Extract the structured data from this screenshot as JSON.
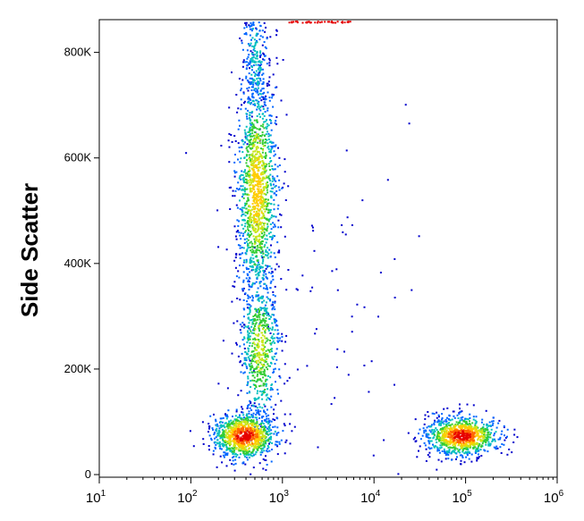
{
  "chart_data": {
    "type": "scatter",
    "subtype": "flow-cytometry-density-dot-plot",
    "title": "",
    "xlabel": "",
    "ylabel": "Side Scatter",
    "x_scale": "log",
    "xlim": [
      10,
      1000000
    ],
    "ylim": [
      -5000,
      862000
    ],
    "x_ticks": [
      {
        "value": 10,
        "base": "10",
        "exp": "1"
      },
      {
        "value": 100,
        "base": "10",
        "exp": "2"
      },
      {
        "value": 1000,
        "base": "10",
        "exp": "3"
      },
      {
        "value": 10000,
        "base": "10",
        "exp": "4"
      },
      {
        "value": 100000,
        "base": "10",
        "exp": "5"
      },
      {
        "value": 1000000,
        "base": "10",
        "exp": "6"
      }
    ],
    "y_ticks": [
      {
        "value": 0,
        "label": "0"
      },
      {
        "value": 200000,
        "label": "200K"
      },
      {
        "value": 400000,
        "label": "400K"
      },
      {
        "value": 600000,
        "label": "600K"
      },
      {
        "value": 800000,
        "label": "800K"
      }
    ],
    "grid": false,
    "legend": "none",
    "colormap": [
      "#0000cc",
      "#0066ff",
      "#00bfbf",
      "#33cc33",
      "#c8e619",
      "#ffcc00",
      "#ff6600",
      "#e60000"
    ],
    "populations": [
      {
        "x_center": 380,
        "y_center": 75000,
        "x_spread_decades": 0.17,
        "y_spread": 22000,
        "events": 1000,
        "peak_density": 7
      },
      {
        "x_center": 560,
        "y_center": 240000,
        "x_spread_decades": 0.11,
        "y_spread": 75000,
        "events": 650,
        "peak_density": 4
      },
      {
        "x_center": 520,
        "y_center": 540000,
        "x_spread_decades": 0.11,
        "y_spread": 110000,
        "events": 1350,
        "peak_density": 5
      },
      {
        "x_center": 500,
        "y_center": 790000,
        "x_spread_decades": 0.07,
        "y_spread": 60000,
        "events": 250,
        "peak_density": 2
      },
      {
        "x_center": 90000,
        "y_center": 75000,
        "x_spread_decades": 0.2,
        "y_spread": 18000,
        "events": 1000,
        "peak_density": 7
      },
      {
        "x_center": 3000,
        "y_center": 300000,
        "x_spread_decades": 0.7,
        "y_spread": 250000,
        "events": 70,
        "peak_density": 0
      }
    ]
  }
}
